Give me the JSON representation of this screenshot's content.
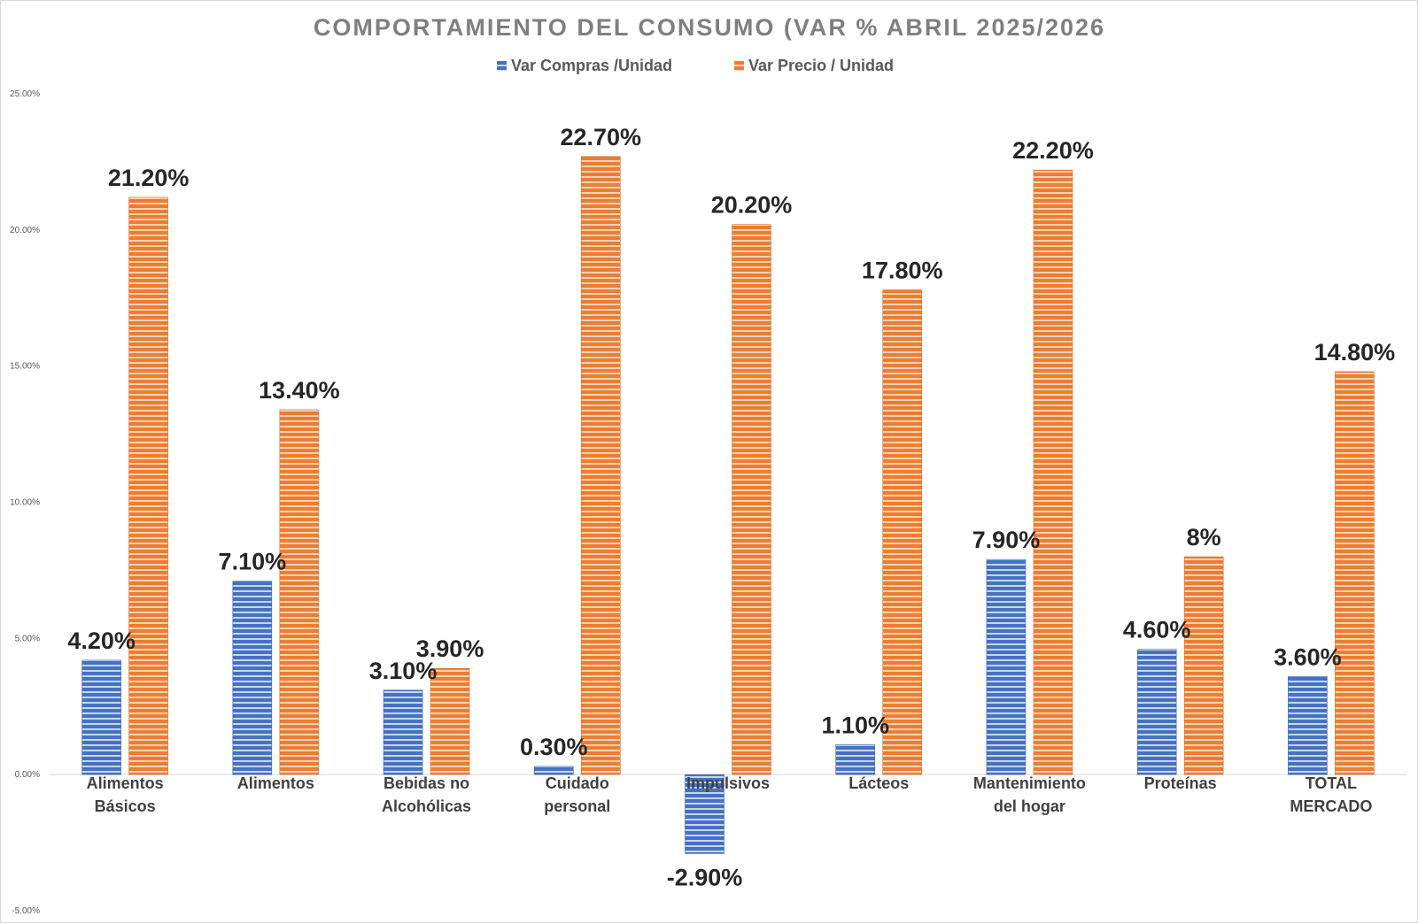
{
  "chart_data": {
    "type": "bar",
    "title": "COMPORTAMIENTO DEL CONSUMO (VAR % ABRIL 2025/2026",
    "xlabel": "",
    "ylabel": "",
    "ylim": [
      -5,
      25
    ],
    "yticks": [
      "-5.00%",
      "0.00%",
      "5.00%",
      "10.00%",
      "15.00%",
      "20.00%",
      "25.00%"
    ],
    "ytick_values": [
      -5,
      0,
      5,
      10,
      15,
      20,
      25
    ],
    "grid": false,
    "legend_position": "top-center",
    "categories": [
      [
        "Alimentos",
        "Básicos"
      ],
      [
        "Alimentos"
      ],
      [
        "Bebidas no",
        "Alcohólicas"
      ],
      [
        "Cuidado",
        "personal"
      ],
      [
        "Impulsivos"
      ],
      [
        "Lácteos"
      ],
      [
        "Mantenimiento",
        "del hogar"
      ],
      [
        "Proteínas"
      ],
      [
        "TOTAL",
        "MERCADO"
      ]
    ],
    "series": [
      {
        "name": "Var Compras /Unidad",
        "color": "#4472c4",
        "values": [
          4.2,
          7.1,
          3.1,
          0.3,
          -2.9,
          1.1,
          7.9,
          4.6,
          3.6
        ],
        "labels": [
          "4.20%",
          "7.10%",
          "3.10%",
          "0.30%",
          "-2.90%",
          "1.10%",
          "7.90%",
          "4.60%",
          "3.60%"
        ]
      },
      {
        "name": "Var Precio / Unidad",
        "color": "#ed7d31",
        "values": [
          21.2,
          13.4,
          3.9,
          22.7,
          20.2,
          17.8,
          22.2,
          8.0,
          14.8
        ],
        "labels": [
          "21.20%",
          "13.40%",
          "3.90%",
          "22.70%",
          "20.20%",
          "17.80%",
          "22.20%",
          "8%",
          "14.80%"
        ]
      }
    ]
  }
}
